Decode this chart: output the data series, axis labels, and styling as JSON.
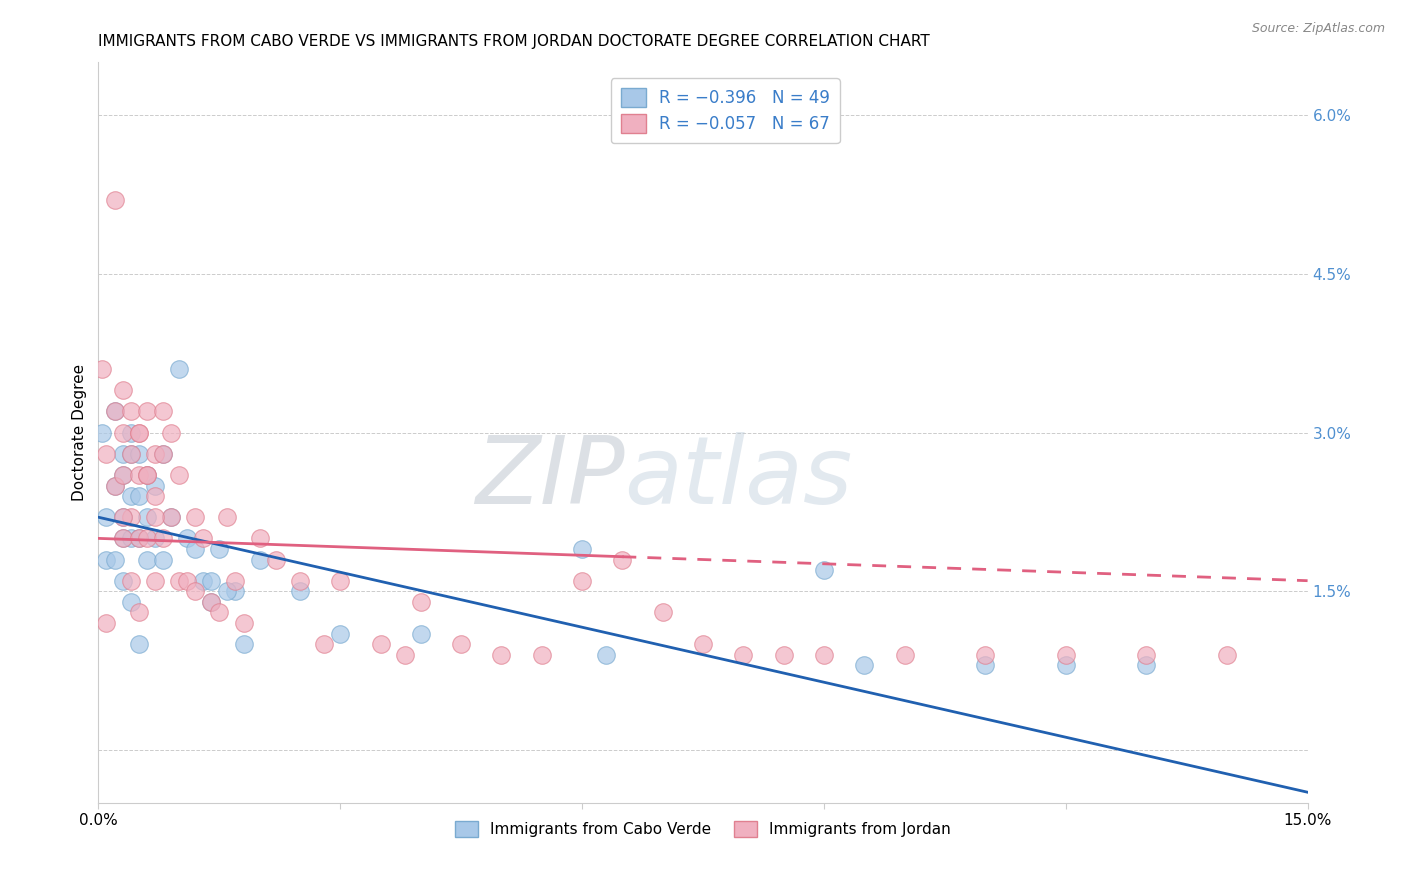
{
  "title": "IMMIGRANTS FROM CABO VERDE VS IMMIGRANTS FROM JORDAN DOCTORATE DEGREE CORRELATION CHART",
  "source": "Source: ZipAtlas.com",
  "ylabel_left": "Doctorate Degree",
  "watermark_zip": "ZIP",
  "watermark_atlas": "atlas",
  "xlim": [
    0.0,
    0.15
  ],
  "ylim": [
    -0.005,
    0.065
  ],
  "y_ticks_right": [
    0.0,
    0.015,
    0.03,
    0.045,
    0.06
  ],
  "y_tick_labels_right": [
    "",
    "1.5%",
    "3.0%",
    "4.5%",
    "6.0%"
  ],
  "legend_r1": "R = −0.396",
  "legend_n1": "N = 49",
  "legend_r2": "R = −0.057",
  "legend_n2": "N = 67",
  "color_blue": "#A8C8E8",
  "color_blue_edge": "#7AAAD0",
  "color_pink": "#F0B0C0",
  "color_pink_edge": "#E08090",
  "trendline_blue_color": "#2060B0",
  "trendline_pink_color": "#E06080",
  "trendline_blue_x0": 0.0,
  "trendline_blue_y0": 0.022,
  "trendline_blue_x1": 0.15,
  "trendline_blue_y1": -0.004,
  "trendline_pink_x0": 0.0,
  "trendline_pink_y0": 0.02,
  "trendline_pink_solid_x1": 0.065,
  "trendline_pink_x1": 0.15,
  "trendline_pink_y1": 0.016,
  "cabo_verde_x": [
    0.0005,
    0.001,
    0.001,
    0.002,
    0.002,
    0.002,
    0.003,
    0.003,
    0.003,
    0.003,
    0.003,
    0.004,
    0.004,
    0.004,
    0.004,
    0.004,
    0.005,
    0.005,
    0.005,
    0.005,
    0.006,
    0.006,
    0.006,
    0.007,
    0.007,
    0.008,
    0.008,
    0.009,
    0.01,
    0.011,
    0.012,
    0.013,
    0.014,
    0.015,
    0.017,
    0.02,
    0.025,
    0.03,
    0.04,
    0.06,
    0.063,
    0.09,
    0.095,
    0.11,
    0.12,
    0.13,
    0.014,
    0.016,
    0.018
  ],
  "cabo_verde_y": [
    0.03,
    0.022,
    0.018,
    0.032,
    0.025,
    0.018,
    0.028,
    0.026,
    0.022,
    0.02,
    0.016,
    0.03,
    0.028,
    0.024,
    0.02,
    0.014,
    0.028,
    0.024,
    0.02,
    0.01,
    0.026,
    0.022,
    0.018,
    0.025,
    0.02,
    0.028,
    0.018,
    0.022,
    0.036,
    0.02,
    0.019,
    0.016,
    0.016,
    0.019,
    0.015,
    0.018,
    0.015,
    0.011,
    0.011,
    0.019,
    0.009,
    0.017,
    0.008,
    0.008,
    0.008,
    0.008,
    0.014,
    0.015,
    0.01
  ],
  "jordan_x": [
    0.0005,
    0.001,
    0.001,
    0.002,
    0.002,
    0.002,
    0.003,
    0.003,
    0.003,
    0.003,
    0.004,
    0.004,
    0.004,
    0.004,
    0.005,
    0.005,
    0.005,
    0.005,
    0.006,
    0.006,
    0.006,
    0.007,
    0.007,
    0.007,
    0.008,
    0.008,
    0.009,
    0.009,
    0.01,
    0.01,
    0.011,
    0.012,
    0.012,
    0.013,
    0.014,
    0.015,
    0.016,
    0.017,
    0.018,
    0.02,
    0.022,
    0.025,
    0.028,
    0.03,
    0.035,
    0.038,
    0.04,
    0.045,
    0.05,
    0.055,
    0.06,
    0.065,
    0.07,
    0.075,
    0.08,
    0.085,
    0.09,
    0.1,
    0.11,
    0.12,
    0.13,
    0.14,
    0.003,
    0.005,
    0.006,
    0.007,
    0.008
  ],
  "jordan_y": [
    0.036,
    0.028,
    0.012,
    0.052,
    0.032,
    0.025,
    0.034,
    0.03,
    0.026,
    0.02,
    0.032,
    0.028,
    0.022,
    0.016,
    0.03,
    0.026,
    0.02,
    0.013,
    0.032,
    0.026,
    0.02,
    0.028,
    0.024,
    0.016,
    0.028,
    0.02,
    0.03,
    0.022,
    0.026,
    0.016,
    0.016,
    0.022,
    0.015,
    0.02,
    0.014,
    0.013,
    0.022,
    0.016,
    0.012,
    0.02,
    0.018,
    0.016,
    0.01,
    0.016,
    0.01,
    0.009,
    0.014,
    0.01,
    0.009,
    0.009,
    0.016,
    0.018,
    0.013,
    0.01,
    0.009,
    0.009,
    0.009,
    0.009,
    0.009,
    0.009,
    0.009,
    0.009,
    0.022,
    0.03,
    0.026,
    0.022,
    0.032
  ]
}
